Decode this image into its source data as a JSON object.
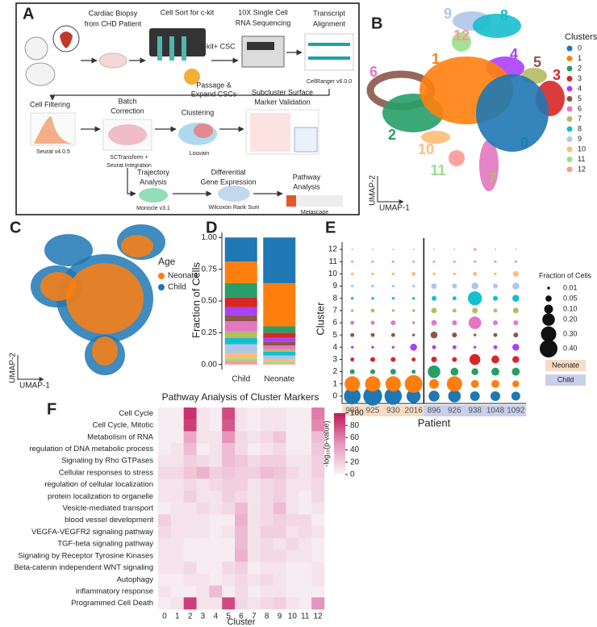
{
  "panel_labels": [
    "A",
    "B",
    "C",
    "D",
    "E",
    "F"
  ],
  "workflow": [
    "Cardiac Biopsy",
    "from CHD Patient",
    "Cell Sort for c-kit",
    "c-kit+ CSC",
    "Passage &",
    "Expand CSCs",
    "10X Single Cell",
    "RNA Sequencing",
    "Transcript",
    "Alignment",
    "CellRanger v6.0.0",
    "Cell Filtering",
    "Seurat v4.0.5",
    "Batch",
    "Correction",
    "SCTransform +",
    "Seurat Integration",
    "Clustering",
    "Louvain",
    "Subcluster Surface",
    "Marker Validation",
    "Trajectory",
    "Analysis",
    "Monocle v3.1",
    "Differential",
    "Gene Expression",
    "Wilcoxon Rank Sum",
    "Pathway",
    "Analysis",
    "Metascape"
  ],
  "chart_data": [
    {
      "type": "umap",
      "legend_title": "Clusters",
      "xlabel": "UMAP-1",
      "ylabel": "UMAP-2",
      "categories": [
        "0",
        "1",
        "2",
        "3",
        "4",
        "5",
        "6",
        "7",
        "8",
        "9",
        "10",
        "11",
        "12"
      ],
      "colors": [
        "#1f77b4",
        "#ff7f0e",
        "#279e68",
        "#d62728",
        "#aa40fc",
        "#8c564b",
        "#e377c2",
        "#b5bd61",
        "#17becf",
        "#aec7e8",
        "#ffbb78",
        "#98df8a",
        "#ff9896"
      ]
    },
    {
      "type": "umap",
      "legend_title": "Age",
      "xlabel": "UMAP-1",
      "ylabel": "UMAP-2",
      "series": [
        {
          "name": "Neonate",
          "color": "#ff7f0e"
        },
        {
          "name": "Child",
          "color": "#1f77b4"
        }
      ]
    },
    {
      "type": "stacked_bar",
      "ylabel": "Fraction of Cells",
      "categories": [
        "Child",
        "Neonate"
      ],
      "ylim": [
        -0.04,
        1.04
      ],
      "yticks": [
        {
          "value": 0,
          "label": "0.00"
        },
        {
          "value": 0.25,
          "label": "0.25"
        },
        {
          "value": 0.5,
          "label": "0.50"
        },
        {
          "value": 0.75,
          "label": "0.75"
        },
        {
          "value": 1,
          "label": "1.00"
        }
      ],
      "series": [
        {
          "color": "#1f77b4",
          "values": [
            0.19,
            0.36
          ]
        },
        {
          "color": "#ff7f0e",
          "values": [
            0.17,
            0.34
          ]
        },
        {
          "color": "#279e68",
          "values": [
            0.11,
            0.05
          ]
        },
        {
          "color": "#d62728",
          "values": [
            0.08,
            0.04
          ]
        },
        {
          "color": "#aa40fc",
          "values": [
            0.06,
            0.03
          ]
        },
        {
          "color": "#8c564b",
          "values": [
            0.05,
            0.03
          ]
        },
        {
          "color": "#e377c2",
          "values": [
            0.08,
            0.03
          ]
        },
        {
          "color": "#b5bd61",
          "values": [
            0.05,
            0.02
          ]
        },
        {
          "color": "#17becf",
          "values": [
            0.05,
            0.03
          ]
        },
        {
          "color": "#aec7e8",
          "values": [
            0.07,
            0.03
          ]
        },
        {
          "color": "#ffbb78",
          "values": [
            0.04,
            0.02
          ]
        },
        {
          "color": "#98df8a",
          "values": [
            0.02,
            0.01
          ]
        },
        {
          "color": "#ff9896",
          "values": [
            0.03,
            0.01
          ]
        }
      ]
    },
    {
      "type": "dot",
      "xlabel": "Patient",
      "ylabel": "Cluster",
      "ylim": [
        -0.6,
        12.6
      ],
      "yticks": [
        0,
        1,
        2,
        3,
        4,
        5,
        6,
        7,
        8,
        9,
        10,
        11,
        12
      ],
      "colors": [
        "#1f77b4",
        "#ff7f0e",
        "#279e68",
        "#d62728",
        "#aa40fc",
        "#8c564b",
        "#e377c2",
        "#b5bd61",
        "#17becf",
        "#aec7e8",
        "#ffbb78",
        "#98df8a",
        "#ff9896"
      ],
      "size_legend": {
        "title": "Fraction of Cells",
        "values": [
          0.01,
          0.05,
          {
            "value": 0.1,
            "label": "0.10"
          },
          {
            "value": 0.2,
            "label": "0.20"
          },
          {
            "value": 0.3,
            "label": "0.30"
          },
          {
            "value": 0.4,
            "label": "0.40"
          }
        ]
      },
      "groups": [
        {
          "name": "Neonate",
          "color": "#f6dcc4",
          "patients": [
            "903",
            "925",
            "930",
            "2016"
          ],
          "values": [
            [
              0.35,
              0.45,
              0.38,
              0.25
            ],
            [
              0.3,
              0.3,
              0.3,
              0.4
            ],
            [
              0.03,
              0.03,
              0.04,
              0.02
            ],
            [
              0.02,
              0.03,
              0.03,
              0.02
            ],
            [
              0.01,
              0.01,
              0.01,
              0.06
            ],
            [
              0.02,
              0.02,
              0.02,
              0.01
            ],
            [
              0.02,
              0.02,
              0.03,
              0.01
            ],
            [
              0.01,
              0.02,
              0.01,
              0.01
            ],
            [
              0.01,
              0.01,
              0.01,
              0.01
            ],
            [
              0.01,
              0.01,
              0.01,
              0.01
            ],
            [
              0.01,
              0.01,
              0.01,
              0.02
            ],
            [
              0.01,
              0.01,
              0.01,
              0.01
            ],
            [
              0.003,
              0.003,
              0.003,
              0.003
            ]
          ]
        },
        {
          "name": "Child",
          "color": "#c9d0ec",
          "patients": [
            "896",
            "926",
            "938",
            "1048",
            "1092"
          ],
          "values": [
            [
              0.15,
              0.2,
              0.12,
              0.12,
              0.1
            ],
            [
              0.12,
              0.3,
              0.08,
              0.08,
              0.06
            ],
            [
              0.2,
              0.08,
              0.06,
              0.08,
              0.08
            ],
            [
              0.04,
              0.03,
              0.15,
              0.08,
              0.06
            ],
            [
              0.02,
              0.02,
              0.01,
              0.02,
              0.06
            ],
            [
              0.06,
              0.03,
              0.01,
              0.02,
              0.03
            ],
            [
              0.04,
              0.03,
              0.2,
              0.03,
              0.03
            ],
            [
              0.04,
              0.02,
              0.04,
              0.02,
              0.04
            ],
            [
              0.03,
              0.02,
              0.25,
              0.03,
              0.06
            ],
            [
              0.04,
              0.03,
              0.06,
              0.03,
              0.06
            ],
            [
              0.01,
              0.01,
              0.02,
              0.01,
              0.04
            ],
            [
              0.01,
              0.01,
              0.01,
              0.01,
              0.01
            ],
            [
              0.003,
              0.003,
              0.01,
              0.003,
              0.003
            ]
          ]
        }
      ]
    },
    {
      "type": "heatmap",
      "title": "Pathway Analysis of Cluster Markers",
      "xlabel": "Cluster",
      "x": [
        0,
        1,
        2,
        3,
        4,
        5,
        6,
        7,
        8,
        9,
        10,
        11,
        12
      ],
      "categories": [
        "Cell Cycle",
        "Cell Cycle, Mitotic",
        "Metabolism of RNA",
        "regulation of DNA metabolic process",
        "Signaling by Rho GTPases",
        "Cellular responses to stress",
        "regulation of cellular localization",
        "protein localization to organelle",
        "Vesicle-mediated transport",
        "blood vessel development",
        "VEGFA-VEGFR2 signaling pathway",
        "TGF-beta signaling pathway",
        "Signaling by Receptor Tyrosine Kinases",
        "Beta-catenin independent WNT signaling",
        "Autophagy",
        "inflammatory response",
        "Programmed Cell Death"
      ],
      "values": [
        [
          5,
          5,
          90,
          10,
          5,
          80,
          10,
          5,
          10,
          10,
          5,
          5,
          60
        ],
        [
          5,
          5,
          85,
          10,
          5,
          75,
          10,
          5,
          10,
          10,
          5,
          5,
          55
        ],
        [
          5,
          5,
          40,
          10,
          10,
          50,
          15,
          10,
          15,
          25,
          5,
          5,
          30
        ],
        [
          5,
          10,
          30,
          5,
          10,
          30,
          15,
          5,
          10,
          15,
          5,
          5,
          25
        ],
        [
          10,
          10,
          20,
          15,
          10,
          30,
          25,
          15,
          20,
          20,
          10,
          10,
          20
        ],
        [
          15,
          15,
          25,
          35,
          20,
          25,
          20,
          20,
          30,
          25,
          15,
          10,
          20
        ],
        [
          10,
          10,
          15,
          10,
          15,
          20,
          20,
          10,
          15,
          20,
          10,
          10,
          15
        ],
        [
          10,
          10,
          20,
          10,
          10,
          20,
          15,
          10,
          15,
          20,
          10,
          5,
          15
        ],
        [
          5,
          10,
          10,
          15,
          10,
          15,
          30,
          10,
          15,
          30,
          10,
          5,
          10
        ],
        [
          20,
          10,
          10,
          10,
          5,
          5,
          35,
          10,
          15,
          20,
          15,
          15,
          5
        ],
        [
          15,
          10,
          10,
          10,
          5,
          10,
          30,
          10,
          20,
          20,
          10,
          15,
          10
        ],
        [
          10,
          10,
          5,
          5,
          5,
          5,
          30,
          10,
          15,
          10,
          15,
          10,
          5
        ],
        [
          10,
          10,
          5,
          5,
          5,
          5,
          35,
          10,
          15,
          15,
          10,
          10,
          5
        ],
        [
          10,
          10,
          15,
          5,
          5,
          15,
          20,
          5,
          10,
          10,
          5,
          5,
          10
        ],
        [
          5,
          5,
          10,
          10,
          5,
          10,
          15,
          10,
          15,
          10,
          5,
          5,
          10
        ],
        [
          10,
          5,
          5,
          10,
          30,
          5,
          15,
          5,
          10,
          10,
          5,
          5,
          5
        ],
        [
          5,
          10,
          85,
          10,
          10,
          80,
          15,
          10,
          15,
          20,
          10,
          5,
          50
        ]
      ],
      "colorbar": {
        "label": "-log₁₀(p-value)",
        "lim": [
          0,
          100
        ],
        "ticks": [
          0,
          20,
          40,
          60,
          80,
          100
        ]
      },
      "colormap": [
        "#f8f6f7",
        "#e795bb",
        "#c0185b"
      ]
    }
  ]
}
